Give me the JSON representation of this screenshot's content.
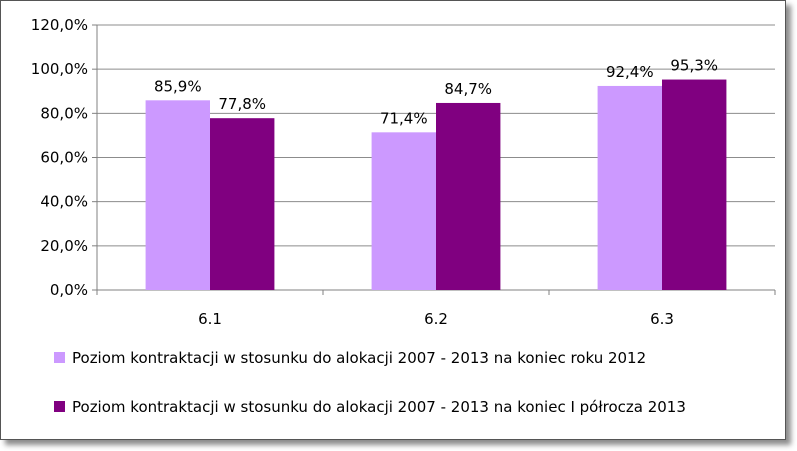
{
  "chart_data": {
    "type": "bar",
    "title": "",
    "xlabel": "",
    "ylabel": "",
    "categories": [
      "6.1",
      "6.2",
      "6.3"
    ],
    "ylim": [
      0,
      120
    ],
    "yticks": [
      0,
      20,
      40,
      60,
      80,
      100,
      120
    ],
    "ytick_labels": [
      "0,0%",
      "20,0%",
      "40,0%",
      "60,0%",
      "80,0%",
      "100,0%",
      "120,0%"
    ],
    "grid": true,
    "legend_position": "bottom",
    "series": [
      {
        "name": "Poziom kontraktacji w stosunku do alokacji 2007 - 2013 na koniec roku 2012",
        "values": [
          85.9,
          71.4,
          92.4
        ],
        "labels": [
          "85,9%",
          "71,4%",
          "92,4%"
        ],
        "color": "#cc99ff"
      },
      {
        "name": "Poziom kontraktacji w stosunku do alokacji 2007 - 2013 na koniec I półrocza 2013",
        "values": [
          77.8,
          84.7,
          95.3
        ],
        "labels": [
          "77,8%",
          "84,7%",
          "95,3%"
        ],
        "color": "#800080"
      }
    ]
  }
}
